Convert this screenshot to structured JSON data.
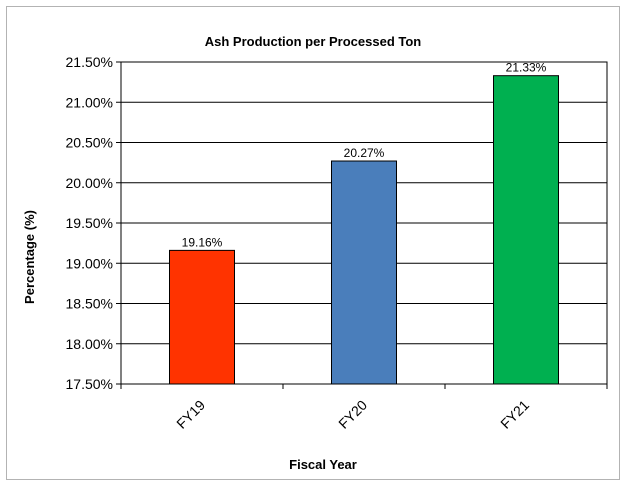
{
  "chart_data": {
    "type": "bar",
    "title": "Ash Production per Processed Ton",
    "xlabel": "Fiscal Year",
    "ylabel": "Percentage (%)",
    "categories": [
      "FY19",
      "FY20",
      "FY21"
    ],
    "values": [
      19.16,
      20.27,
      21.33
    ],
    "data_labels": [
      "19.16%",
      "20.27%",
      "21.33%"
    ],
    "colors": [
      "#ff3300",
      "#4a7ebb",
      "#00b050"
    ],
    "ylim": [
      17.5,
      21.5
    ],
    "yticks": [
      17.5,
      18.0,
      18.5,
      19.0,
      19.5,
      20.0,
      20.5,
      21.0,
      21.5
    ],
    "ytick_labels": [
      "17.50%",
      "18.00%",
      "18.50%",
      "19.00%",
      "19.50%",
      "20.00%",
      "20.50%",
      "21.00%",
      "21.50%"
    ],
    "grid": true,
    "legend": "none"
  }
}
